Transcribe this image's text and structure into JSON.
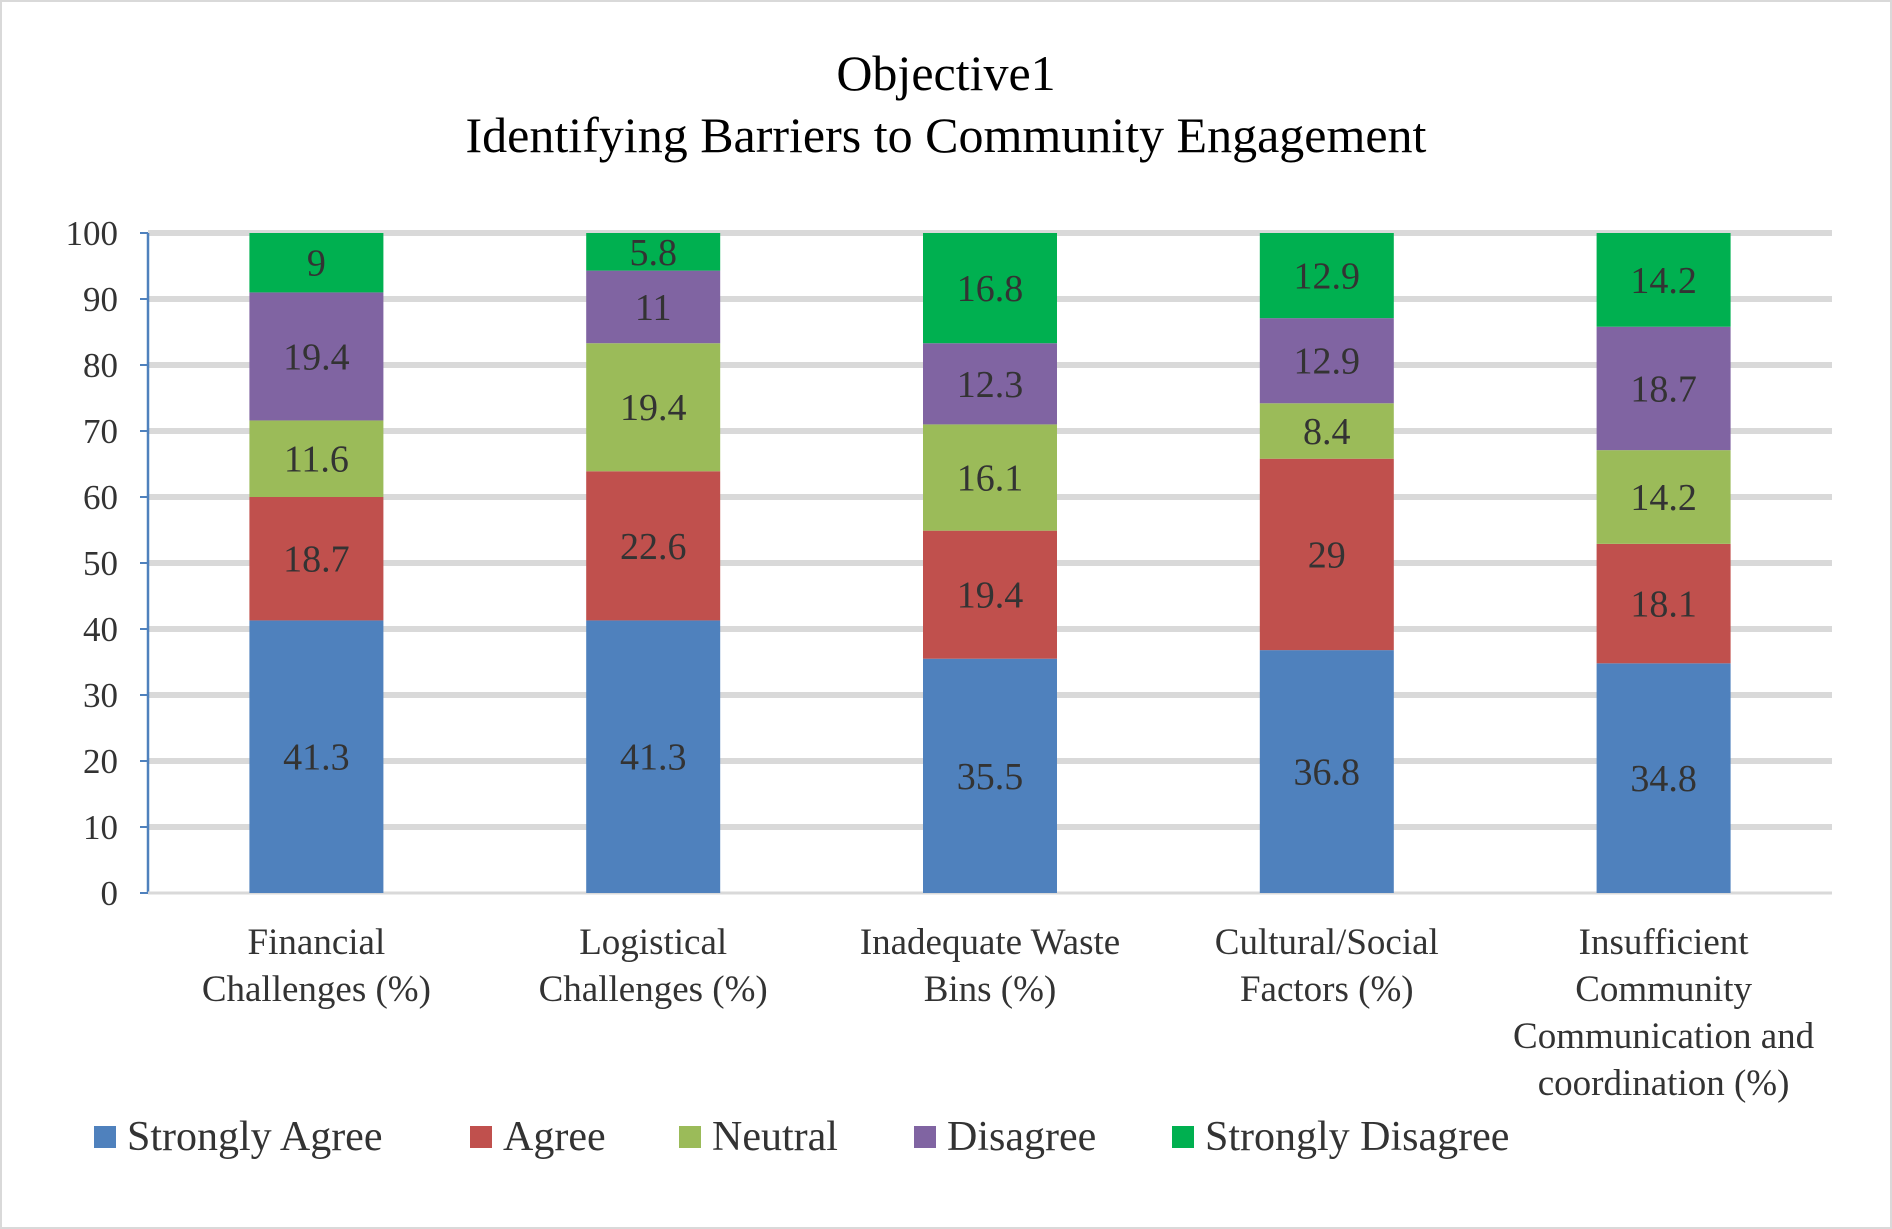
{
  "chart_data": {
    "type": "bar",
    "stacked": true,
    "title": "Objective1",
    "subtitle": "Identifying Barriers to Community Engagement",
    "xlabel": "",
    "ylabel": "",
    "ylim": [
      0,
      100
    ],
    "yticks": [
      0,
      10,
      20,
      30,
      40,
      50,
      60,
      70,
      80,
      90,
      100
    ],
    "grid": true,
    "legend_position": "bottom",
    "categories": [
      [
        "Financial",
        "Challenges (%)"
      ],
      [
        "Logistical",
        "Challenges (%)"
      ],
      [
        "Inadequate Waste",
        "Bins (%)"
      ],
      [
        "Cultural/Social",
        "Factors (%)"
      ],
      [
        "Insufficient",
        "Community",
        "Communication and",
        "coordination  (%)"
      ]
    ],
    "series": [
      {
        "name": "Strongly Agree",
        "color": "#4f81bd",
        "values": [
          41.3,
          41.3,
          35.5,
          36.8,
          34.8
        ]
      },
      {
        "name": "Agree",
        "color": "#c0504d",
        "values": [
          18.7,
          22.6,
          19.4,
          29,
          18.1
        ]
      },
      {
        "name": "Neutral",
        "color": "#9bbb59",
        "values": [
          11.6,
          19.4,
          16.1,
          8.4,
          14.2
        ]
      },
      {
        "name": "Disagree",
        "color": "#8064a2",
        "values": [
          19.4,
          11,
          12.3,
          12.9,
          18.7
        ]
      },
      {
        "name": "Strongly Disagree",
        "color": "#00b050",
        "values": [
          9,
          5.8,
          16.8,
          12.9,
          14.2
        ]
      }
    ]
  }
}
